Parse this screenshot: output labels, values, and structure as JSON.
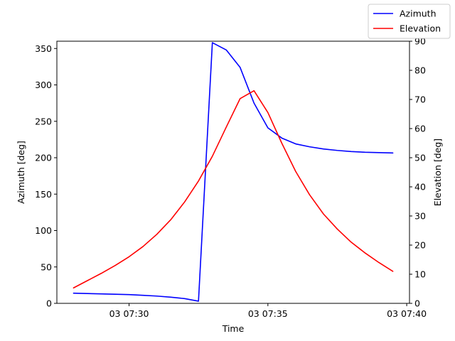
{
  "chart_data": {
    "type": "line",
    "xlabel": "Time",
    "ylabel_left": "Azimuth [deg]",
    "ylabel_right": "Elevation [deg]",
    "x_ticks": [
      {
        "minute": 30,
        "label": "03 07:30"
      },
      {
        "minute": 35,
        "label": "03 07:35"
      },
      {
        "minute": 40,
        "label": "03 07:40"
      }
    ],
    "x_range_minutes": [
      27.4,
      40.1
    ],
    "ylim_left": [
      0,
      360
    ],
    "ylim_right": [
      0,
      90
    ],
    "y_ticks_left": [
      0,
      50,
      100,
      150,
      200,
      250,
      300,
      350
    ],
    "y_ticks_right": [
      0,
      10,
      20,
      30,
      40,
      50,
      60,
      70,
      80,
      90
    ],
    "legend_position": "top-right",
    "series": [
      {
        "name": "Azimuth",
        "axis": "left",
        "color": "#0000ff",
        "x_minutes": [
          28.0,
          28.5,
          29.0,
          29.5,
          30.0,
          30.5,
          31.0,
          31.5,
          32.0,
          32.5,
          33.0,
          33.5,
          34.0,
          34.5,
          35.0,
          35.5,
          36.0,
          36.5,
          37.0,
          37.5,
          38.0,
          38.5,
          39.0,
          39.5
        ],
        "values": [
          14,
          13.5,
          13,
          12.5,
          12,
          11,
          10,
          8.5,
          6.5,
          3,
          358,
          348,
          324,
          275,
          241,
          227,
          219,
          215,
          212,
          210,
          208.5,
          207.5,
          207,
          206.5
        ]
      },
      {
        "name": "Elevation",
        "axis": "right",
        "color": "#ff0000",
        "x_minutes": [
          28.0,
          28.5,
          29.0,
          29.5,
          30.0,
          30.5,
          31.0,
          31.5,
          32.0,
          32.5,
          33.0,
          33.5,
          34.0,
          34.5,
          35.0,
          35.5,
          36.0,
          36.5,
          37.0,
          37.5,
          38.0,
          38.5,
          39.0,
          39.5
        ],
        "values": [
          5.3,
          7.8,
          10.3,
          13.0,
          16.0,
          19.5,
          23.7,
          28.7,
          34.8,
          42.0,
          50.5,
          60.5,
          70.3,
          73.0,
          65.5,
          55.0,
          45.3,
          37.3,
          30.7,
          25.5,
          21.0,
          17.3,
          14.0,
          11.0
        ]
      }
    ]
  }
}
